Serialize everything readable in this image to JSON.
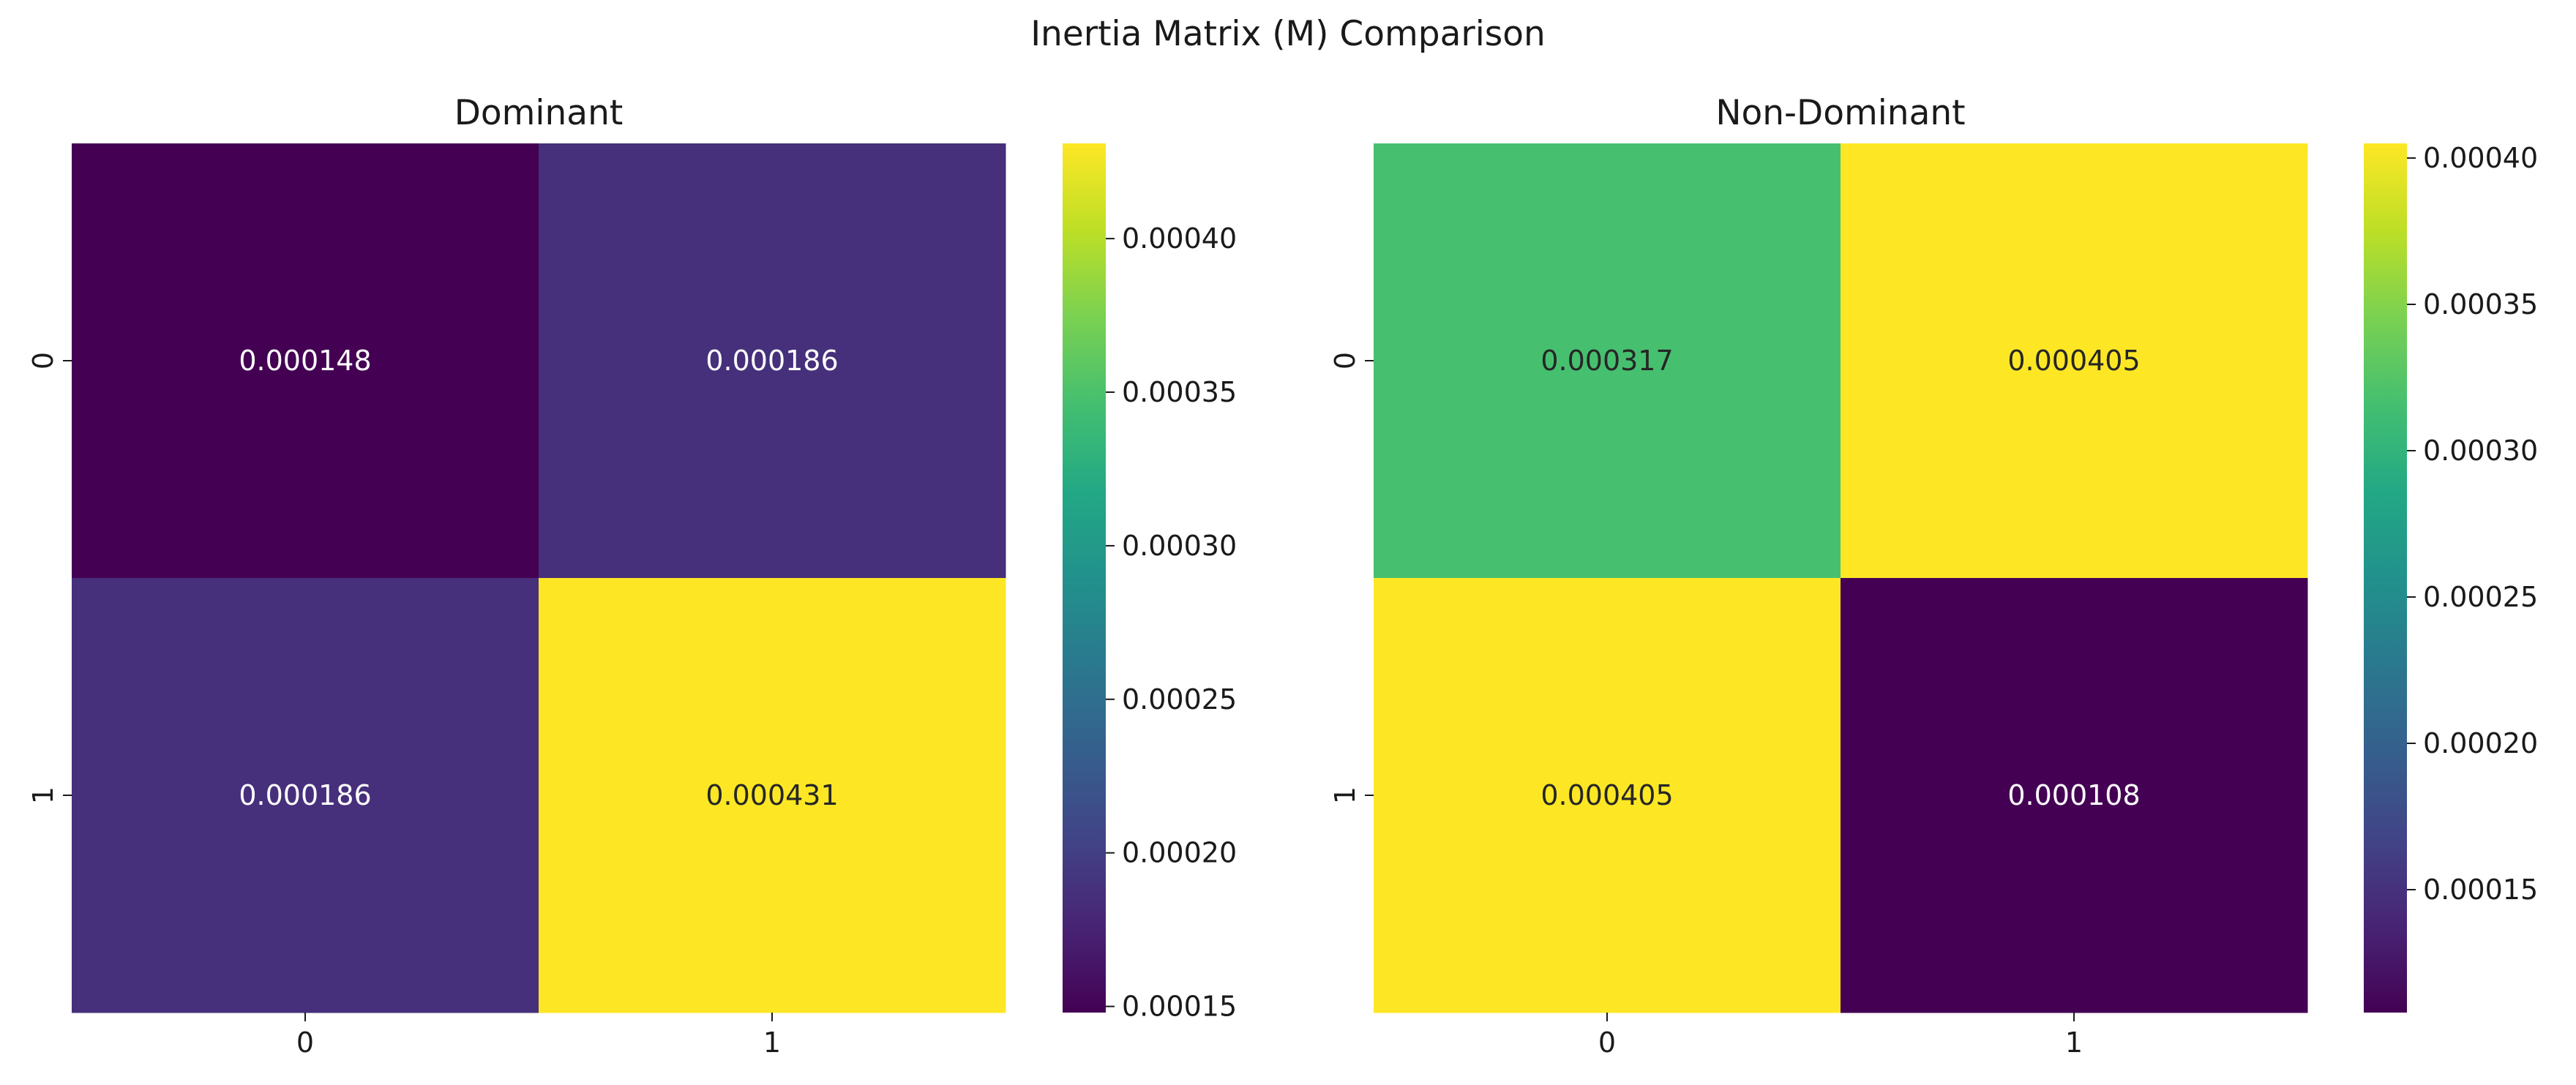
{
  "figure": {
    "suptitle": "Inertia Matrix (M) Comparison"
  },
  "chart_data": [
    {
      "type": "heatmap",
      "title": "Dominant",
      "xlabel": "",
      "ylabel": "",
      "x_tick_labels": [
        "0",
        "1"
      ],
      "y_tick_labels": [
        "0",
        "1"
      ],
      "matrix": [
        [
          0.000148,
          0.000186
        ],
        [
          0.000186,
          0.000431
        ]
      ],
      "annotations": [
        [
          "0.000148",
          "0.000186"
        ],
        [
          "0.000186",
          "0.000431"
        ]
      ],
      "colormap": "viridis",
      "colorbar": {
        "range": [
          0.000148,
          0.000431
        ],
        "ticks": [
          0.00015,
          0.0002,
          0.00025,
          0.0003,
          0.00035,
          0.0004
        ],
        "tick_labels": [
          "0.00015",
          "0.00020",
          "0.00025",
          "0.00030",
          "0.00035",
          "0.00040"
        ]
      },
      "grid": false,
      "legend": "colorbar-right"
    },
    {
      "type": "heatmap",
      "title": "Non-Dominant",
      "xlabel": "",
      "ylabel": "",
      "x_tick_labels": [
        "0",
        "1"
      ],
      "y_tick_labels": [
        "0",
        "1"
      ],
      "matrix": [
        [
          0.000317,
          0.000405
        ],
        [
          0.000405,
          0.000108
        ]
      ],
      "annotations": [
        [
          "0.000317",
          "0.000405"
        ],
        [
          "0.000405",
          "0.000108"
        ]
      ],
      "colormap": "viridis",
      "colorbar": {
        "range": [
          0.000108,
          0.000405
        ],
        "ticks": [
          0.00015,
          0.0002,
          0.00025,
          0.0003,
          0.00035,
          0.0004
        ],
        "tick_labels": [
          "0.00015",
          "0.00020",
          "0.00025",
          "0.00030",
          "0.00035",
          "0.00040"
        ]
      },
      "grid": false,
      "legend": "colorbar-right"
    }
  ]
}
